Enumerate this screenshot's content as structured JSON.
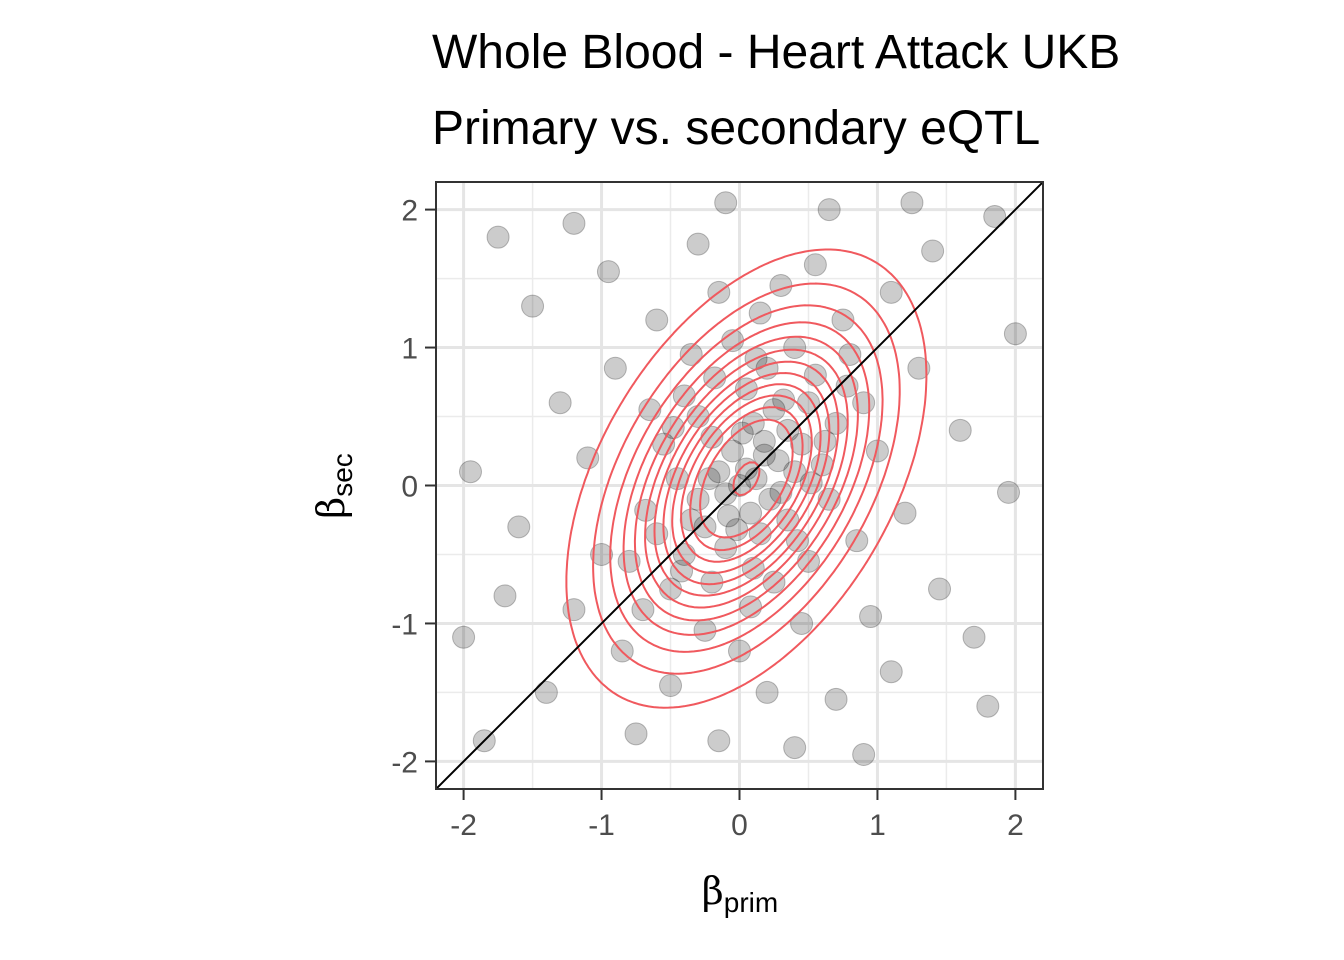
{
  "chart_data": {
    "type": "scatter",
    "title": "Whole Blood - Heart Attack UKB",
    "subtitle": "Primary vs. secondary eQTL",
    "xlabel": {
      "symbol": "β",
      "subscript": "prim"
    },
    "ylabel": {
      "symbol": "β",
      "subscript": "sec"
    },
    "xlim": [
      -2.2,
      2.2
    ],
    "ylim": [
      -2.2,
      2.2
    ],
    "x_ticks": [
      -2,
      -1,
      0,
      1,
      2
    ],
    "y_ticks": [
      -2,
      -1,
      0,
      1,
      2
    ],
    "x_tick_labels": [
      "-2",
      "-1",
      "0",
      "1",
      "2"
    ],
    "y_tick_labels": [
      "-2",
      "-1",
      "0",
      "1",
      "2"
    ],
    "grid": true,
    "reference_line": {
      "slope": 1,
      "intercept": 0,
      "color": "#000000"
    },
    "point_color": "#000000",
    "point_alpha": 0.2,
    "contour_color": "#f0595e",
    "density": {
      "type": "2d-gaussian",
      "mean": [
        0.05,
        0.05
      ],
      "sd": [
        0.55,
        0.7
      ],
      "rho": 0.45
    },
    "contour_levels": [
      0.06,
      0.13,
      0.2,
      0.27,
      0.34,
      0.41,
      0.48,
      0.55,
      0.62,
      0.69,
      0.76,
      0.83,
      0.985
    ],
    "points": [
      {
        "x": 0.12,
        "y": 0.05
      },
      {
        "x": 0.28,
        "y": 0.18
      },
      {
        "x": 0.05,
        "y": 0.12
      },
      {
        "x": -0.1,
        "y": -0.06
      },
      {
        "x": 0.18,
        "y": 0.22
      },
      {
        "x": -0.25,
        "y": -0.3
      },
      {
        "x": 0.35,
        "y": 0.4
      },
      {
        "x": 0.0,
        "y": 0.0
      },
      {
        "x": 0.22,
        "y": -0.1
      },
      {
        "x": -0.05,
        "y": 0.25
      },
      {
        "x": 0.4,
        "y": 0.1
      },
      {
        "x": -0.3,
        "y": -0.1
      },
      {
        "x": 0.1,
        "y": 0.45
      },
      {
        "x": 0.15,
        "y": -0.35
      },
      {
        "x": -0.4,
        "y": -0.5
      },
      {
        "x": 0.5,
        "y": 0.6
      },
      {
        "x": 0.3,
        "y": -0.05
      },
      {
        "x": -0.15,
        "y": 0.1
      },
      {
        "x": 0.08,
        "y": -0.2
      },
      {
        "x": 0.25,
        "y": 0.55
      },
      {
        "x": -0.2,
        "y": 0.35
      },
      {
        "x": 0.45,
        "y": 0.3
      },
      {
        "x": -0.35,
        "y": -0.25
      },
      {
        "x": 0.6,
        "y": 0.15
      },
      {
        "x": -0.1,
        "y": -0.45
      },
      {
        "x": 0.05,
        "y": 0.7
      },
      {
        "x": 0.2,
        "y": 0.85
      },
      {
        "x": -0.3,
        "y": 0.5
      },
      {
        "x": 0.35,
        "y": -0.25
      },
      {
        "x": -0.5,
        "y": -0.75
      },
      {
        "x": -0.45,
        "y": 0.05
      },
      {
        "x": 0.55,
        "y": 0.8
      },
      {
        "x": 0.7,
        "y": 0.45
      },
      {
        "x": -0.2,
        "y": -0.7
      },
      {
        "x": 0.1,
        "y": -0.6
      },
      {
        "x": -0.6,
        "y": -0.35
      },
      {
        "x": 0.4,
        "y": 1.0
      },
      {
        "x": -0.05,
        "y": 1.05
      },
      {
        "x": 0.25,
        "y": -0.7
      },
      {
        "x": -0.4,
        "y": 0.65
      },
      {
        "x": 0.65,
        "y": -0.1
      },
      {
        "x": -0.7,
        "y": -0.9
      },
      {
        "x": 0.8,
        "y": 0.95
      },
      {
        "x": -0.55,
        "y": 0.3
      },
      {
        "x": 0.15,
        "y": 1.25
      },
      {
        "x": -0.25,
        "y": -1.05
      },
      {
        "x": 0.5,
        "y": -0.55
      },
      {
        "x": -0.8,
        "y": -0.55
      },
      {
        "x": 0.3,
        "y": 1.45
      },
      {
        "x": -0.15,
        "y": 1.4
      },
      {
        "x": 0.75,
        "y": 1.2
      },
      {
        "x": -0.35,
        "y": 0.95
      },
      {
        "x": 0.9,
        "y": 0.6
      },
      {
        "x": -0.65,
        "y": 0.55
      },
      {
        "x": 0.0,
        "y": -1.2
      },
      {
        "x": 0.45,
        "y": -1.0
      },
      {
        "x": -0.85,
        "y": -1.2
      },
      {
        "x": -1.0,
        "y": -0.5
      },
      {
        "x": 1.0,
        "y": 0.25
      },
      {
        "x": 0.85,
        "y": -0.4
      },
      {
        "x": -0.6,
        "y": 1.2
      },
      {
        "x": 0.55,
        "y": 1.6
      },
      {
        "x": -0.3,
        "y": 1.75
      },
      {
        "x": 1.1,
        "y": 1.4
      },
      {
        "x": -1.1,
        "y": 0.2
      },
      {
        "x": -1.2,
        "y": -0.9
      },
      {
        "x": 0.2,
        "y": -1.5
      },
      {
        "x": -0.5,
        "y": -1.45
      },
      {
        "x": 1.2,
        "y": -0.2
      },
      {
        "x": 0.95,
        "y": -0.95
      },
      {
        "x": -0.9,
        "y": 0.85
      },
      {
        "x": 0.65,
        "y": 2.0
      },
      {
        "x": -0.1,
        "y": 2.05
      },
      {
        "x": 1.3,
        "y": 0.85
      },
      {
        "x": -1.3,
        "y": 0.6
      },
      {
        "x": -1.4,
        "y": -1.5
      },
      {
        "x": 0.7,
        "y": -1.55
      },
      {
        "x": -0.15,
        "y": -1.85
      },
      {
        "x": 1.4,
        "y": 1.7
      },
      {
        "x": 1.45,
        "y": -0.75
      },
      {
        "x": -1.5,
        "y": 1.3
      },
      {
        "x": -1.6,
        "y": -0.3
      },
      {
        "x": 1.6,
        "y": 0.4
      },
      {
        "x": 1.1,
        "y": -1.35
      },
      {
        "x": -0.75,
        "y": -1.8
      },
      {
        "x": 0.4,
        "y": -1.9
      },
      {
        "x": -1.75,
        "y": 1.8
      },
      {
        "x": 1.8,
        "y": -1.6
      },
      {
        "x": -1.85,
        "y": -1.85
      },
      {
        "x": 1.85,
        "y": 1.95
      },
      {
        "x": -1.95,
        "y": 0.1
      },
      {
        "x": 1.95,
        "y": -0.05
      },
      {
        "x": -1.2,
        "y": 1.9
      },
      {
        "x": 1.25,
        "y": 2.05
      },
      {
        "x": -2.0,
        "y": -1.1
      },
      {
        "x": 2.0,
        "y": 1.1
      },
      {
        "x": 0.9,
        "y": -1.95
      },
      {
        "x": -0.95,
        "y": 1.55
      },
      {
        "x": 1.7,
        "y": -1.1
      },
      {
        "x": -1.7,
        "y": -0.8
      },
      {
        "x": 0.18,
        "y": 0.32
      },
      {
        "x": -0.08,
        "y": -0.22
      },
      {
        "x": 0.32,
        "y": 0.62
      },
      {
        "x": -0.22,
        "y": 0.05
      },
      {
        "x": 0.42,
        "y": -0.4
      },
      {
        "x": -0.42,
        "y": -0.62
      },
      {
        "x": 0.62,
        "y": 0.32
      },
      {
        "x": 0.02,
        "y": 0.38
      },
      {
        "x": -0.02,
        "y": -0.32
      },
      {
        "x": 0.12,
        "y": 0.92
      },
      {
        "x": -0.48,
        "y": 0.42
      },
      {
        "x": 0.52,
        "y": 0.02
      },
      {
        "x": -0.68,
        "y": -0.18
      },
      {
        "x": 0.78,
        "y": 0.72
      },
      {
        "x": 0.08,
        "y": -0.88
      },
      {
        "x": -0.18,
        "y": 0.78
      }
    ]
  }
}
